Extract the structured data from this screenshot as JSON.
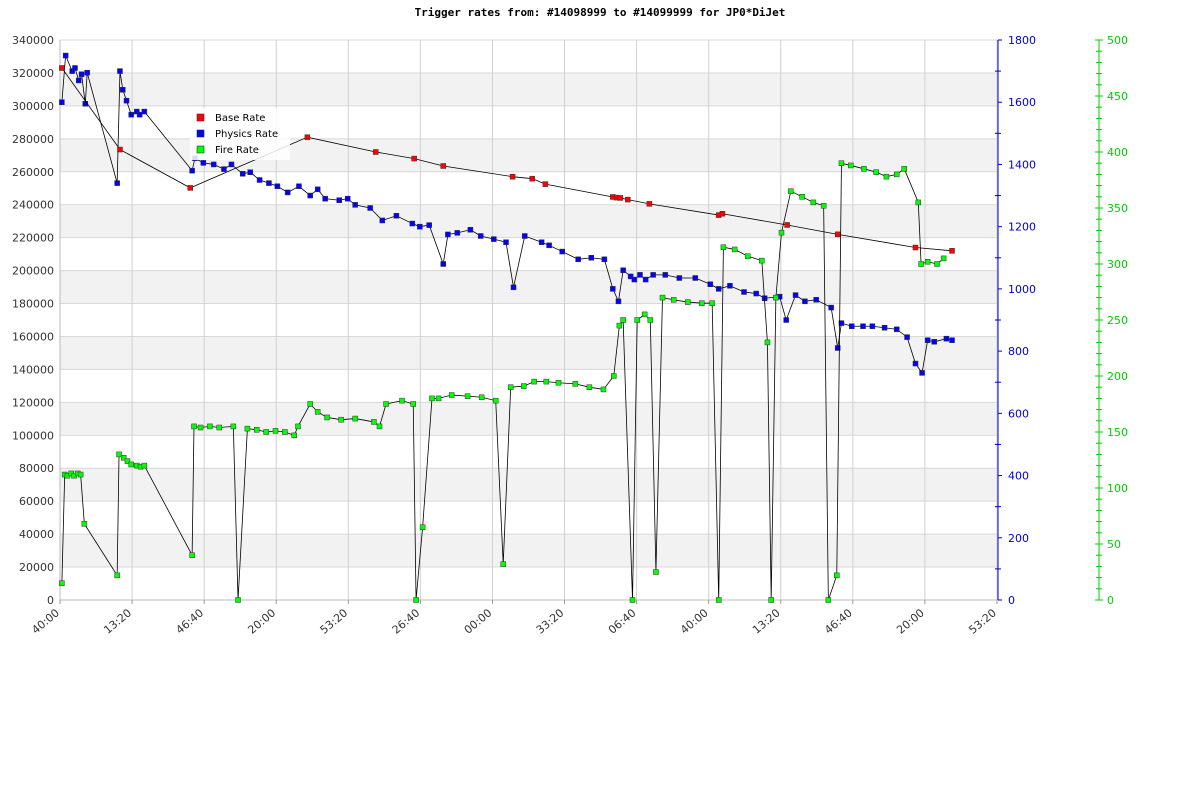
{
  "chart_data": {
    "type": "line",
    "title": "Trigger rates from: #14098999 to #14099999 for JP0*DiJet",
    "x_ticks": [
      "40:00",
      "13:20",
      "46:40",
      "20:00",
      "53:20",
      "26:40",
      "00:00",
      "33:20",
      "06:40",
      "40:00",
      "13:20",
      "46:40",
      "20:00",
      "53:20"
    ],
    "left_axis": {
      "min": 0,
      "max": 340000,
      "ticks": [
        "0",
        "20000",
        "40000",
        "60000",
        "80000",
        "100000",
        "120000",
        "140000",
        "160000",
        "180000",
        "200000",
        "220000",
        "240000",
        "260000",
        "280000",
        "300000",
        "320000",
        "340000"
      ]
    },
    "right_axis_1": {
      "min": 0,
      "max": 1800,
      "ticks": [
        "0",
        "200",
        "400",
        "600",
        "800",
        "1000",
        "1200",
        "1400",
        "1600",
        "1800"
      ]
    },
    "right_axis_2": {
      "min": 0,
      "max": 500,
      "ticks": [
        "0",
        "50",
        "100",
        "150",
        "200",
        "250",
        "300",
        "350",
        "400",
        "450",
        "500"
      ]
    },
    "grid": true,
    "legend": {
      "placement": "top-left"
    },
    "colors": {
      "base": "#ff0000",
      "physics": "#0000ff",
      "fire": "#00ff00",
      "line": "#000000",
      "right_axis_1": "#0000cc",
      "right_axis_2": "#00cc00"
    },
    "series": [
      {
        "name": "Base Rate",
        "axis": "left",
        "points": [
          [
            0.2,
            323000
          ],
          [
            6.4,
            273500
          ],
          [
            13.9,
            250200
          ],
          [
            26.4,
            281000
          ],
          [
            33.7,
            272000
          ],
          [
            37.8,
            268000
          ],
          [
            40.9,
            263500
          ],
          [
            48.3,
            257000
          ],
          [
            50.4,
            255800
          ],
          [
            51.8,
            252500
          ],
          [
            59.0,
            244700
          ],
          [
            59.4,
            244300
          ],
          [
            59.8,
            244100
          ],
          [
            60.6,
            243100
          ],
          [
            62.9,
            240500
          ],
          [
            70.3,
            233700
          ],
          [
            70.7,
            234500
          ],
          [
            77.6,
            227700
          ],
          [
            83.0,
            222000
          ],
          [
            91.3,
            214000
          ],
          [
            95.2,
            212000
          ]
        ]
      },
      {
        "name": "Physics Rate",
        "axis": "right1",
        "points": [
          [
            0.2,
            1600
          ],
          [
            0.6,
            1750
          ],
          [
            1.3,
            1700
          ],
          [
            1.6,
            1710
          ],
          [
            2.0,
            1670
          ],
          [
            2.3,
            1690
          ],
          [
            2.7,
            1595
          ],
          [
            2.9,
            1695
          ],
          [
            6.1,
            1340
          ],
          [
            6.4,
            1700
          ],
          [
            6.7,
            1640
          ],
          [
            7.1,
            1605
          ],
          [
            7.6,
            1560
          ],
          [
            8.2,
            1570
          ],
          [
            8.5,
            1560
          ],
          [
            9.0,
            1570
          ],
          [
            14.1,
            1380
          ],
          [
            14.4,
            1420
          ],
          [
            15.3,
            1405
          ],
          [
            16.4,
            1400
          ],
          [
            17.5,
            1385
          ],
          [
            18.3,
            1400
          ],
          [
            19.5,
            1370
          ],
          [
            20.3,
            1375
          ],
          [
            21.3,
            1350
          ],
          [
            22.3,
            1340
          ],
          [
            23.2,
            1330
          ],
          [
            24.3,
            1310
          ],
          [
            25.5,
            1330
          ],
          [
            26.7,
            1300
          ],
          [
            27.5,
            1320
          ],
          [
            28.3,
            1290
          ],
          [
            29.8,
            1285
          ],
          [
            30.7,
            1290
          ],
          [
            31.5,
            1270
          ],
          [
            33.1,
            1260
          ],
          [
            34.4,
            1220
          ],
          [
            35.9,
            1235
          ],
          [
            37.6,
            1210
          ],
          [
            38.4,
            1200
          ],
          [
            39.4,
            1205
          ],
          [
            40.9,
            1080
          ],
          [
            41.4,
            1175
          ],
          [
            42.4,
            1180
          ],
          [
            43.8,
            1190
          ],
          [
            44.9,
            1170
          ],
          [
            46.3,
            1160
          ],
          [
            47.6,
            1150
          ],
          [
            48.4,
            1005
          ],
          [
            49.6,
            1170
          ],
          [
            51.4,
            1150
          ],
          [
            52.2,
            1140
          ],
          [
            53.6,
            1120
          ],
          [
            55.3,
            1095
          ],
          [
            56.7,
            1100
          ],
          [
            58.1,
            1095
          ],
          [
            59.0,
            1000
          ],
          [
            59.6,
            960
          ],
          [
            60.1,
            1060
          ],
          [
            60.9,
            1040
          ],
          [
            61.3,
            1030
          ],
          [
            61.9,
            1045
          ],
          [
            62.5,
            1030
          ],
          [
            63.3,
            1045
          ],
          [
            64.6,
            1045
          ],
          [
            66.1,
            1035
          ],
          [
            67.8,
            1035
          ],
          [
            69.4,
            1015
          ],
          [
            70.3,
            1000
          ],
          [
            71.5,
            1010
          ],
          [
            73.0,
            990
          ],
          [
            74.3,
            985
          ],
          [
            75.2,
            970
          ],
          [
            76.8,
            975
          ],
          [
            77.5,
            900
          ],
          [
            78.5,
            980
          ],
          [
            79.5,
            960
          ],
          [
            80.7,
            965
          ],
          [
            82.3,
            940
          ],
          [
            83.0,
            810
          ],
          [
            83.4,
            890
          ],
          [
            84.5,
            880
          ],
          [
            85.7,
            880
          ],
          [
            86.7,
            880
          ],
          [
            88.0,
            875
          ],
          [
            89.3,
            870
          ],
          [
            90.4,
            845
          ],
          [
            91.3,
            760
          ],
          [
            92.0,
            730
          ],
          [
            92.6,
            835
          ],
          [
            93.3,
            830
          ],
          [
            94.6,
            840
          ],
          [
            95.2,
            835
          ]
        ]
      },
      {
        "name": "Fire Rate",
        "axis": "right2",
        "points": [
          [
            0.2,
            15
          ],
          [
            0.5,
            112
          ],
          [
            0.8,
            111
          ],
          [
            1.2,
            113
          ],
          [
            1.5,
            111
          ],
          [
            1.9,
            113
          ],
          [
            2.2,
            112
          ],
          [
            2.6,
            68
          ],
          [
            6.1,
            22
          ],
          [
            6.3,
            130
          ],
          [
            6.8,
            127
          ],
          [
            7.2,
            124
          ],
          [
            7.6,
            121
          ],
          [
            8.2,
            120
          ],
          [
            8.6,
            119
          ],
          [
            9.0,
            120
          ],
          [
            14.1,
            40
          ],
          [
            14.3,
            155
          ],
          [
            15.0,
            154
          ],
          [
            16.0,
            155
          ],
          [
            17.0,
            154
          ],
          [
            18.5,
            155
          ],
          [
            19.0,
            0
          ],
          [
            20.0,
            153
          ],
          [
            21.0,
            152
          ],
          [
            22.0,
            150
          ],
          [
            23.0,
            151
          ],
          [
            24.0,
            150
          ],
          [
            25.0,
            147
          ],
          [
            25.4,
            155
          ],
          [
            26.7,
            175
          ],
          [
            27.5,
            168
          ],
          [
            28.5,
            163
          ],
          [
            30.0,
            161
          ],
          [
            31.5,
            162
          ],
          [
            33.5,
            159
          ],
          [
            34.1,
            155
          ],
          [
            34.8,
            175
          ],
          [
            36.5,
            178
          ],
          [
            37.7,
            175
          ],
          [
            38.0,
            0
          ],
          [
            38.7,
            65
          ],
          [
            39.7,
            180
          ],
          [
            40.4,
            180
          ],
          [
            41.8,
            183
          ],
          [
            43.5,
            182
          ],
          [
            45.0,
            181
          ],
          [
            46.5,
            178
          ],
          [
            47.3,
            32
          ],
          [
            48.1,
            190
          ],
          [
            49.5,
            191
          ],
          [
            50.6,
            195
          ],
          [
            51.9,
            195
          ],
          [
            53.2,
            194
          ],
          [
            55.0,
            193
          ],
          [
            56.5,
            190
          ],
          [
            58.0,
            188
          ],
          [
            59.1,
            200
          ],
          [
            59.7,
            245
          ],
          [
            60.1,
            250
          ],
          [
            61.1,
            0
          ],
          [
            61.6,
            250
          ],
          [
            62.4,
            255
          ],
          [
            63.0,
            250
          ],
          [
            63.6,
            25
          ],
          [
            64.3,
            270
          ],
          [
            65.5,
            268
          ],
          [
            67.0,
            266
          ],
          [
            68.5,
            265
          ],
          [
            69.6,
            265
          ],
          [
            70.3,
            0
          ],
          [
            70.8,
            315
          ],
          [
            72.0,
            313
          ],
          [
            73.4,
            307
          ],
          [
            74.9,
            303
          ],
          [
            75.5,
            230
          ],
          [
            75.9,
            0
          ],
          [
            76.4,
            270
          ],
          [
            77.0,
            328
          ],
          [
            78.0,
            365
          ],
          [
            79.2,
            360
          ],
          [
            80.4,
            355
          ],
          [
            81.5,
            352
          ],
          [
            82.0,
            0
          ],
          [
            82.9,
            22
          ],
          [
            83.4,
            390
          ],
          [
            84.4,
            388
          ],
          [
            85.8,
            385
          ],
          [
            87.1,
            382
          ],
          [
            88.2,
            378
          ],
          [
            89.3,
            380
          ],
          [
            90.1,
            385
          ],
          [
            91.6,
            355
          ],
          [
            91.9,
            300
          ],
          [
            92.6,
            302
          ],
          [
            93.6,
            300
          ],
          [
            94.3,
            305
          ]
        ]
      }
    ]
  }
}
